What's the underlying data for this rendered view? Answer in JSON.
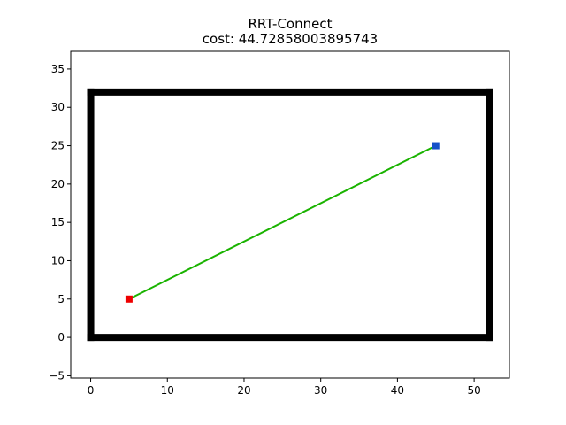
{
  "chart_data": {
    "type": "line",
    "title": "RRT-Connect",
    "subtitle": "cost: 44.72858003895743",
    "xlabel": "",
    "ylabel": "",
    "xlim": [
      -2.6,
      54.6
    ],
    "ylim": [
      -5.3,
      37.3
    ],
    "grid": false,
    "x_ticks": [
      0,
      10,
      20,
      30,
      40,
      50
    ],
    "y_ticks": [
      -5,
      0,
      5,
      10,
      15,
      20,
      25,
      30,
      35
    ],
    "boundary": {
      "x": [
        0,
        52,
        52,
        0,
        0
      ],
      "y": [
        0,
        0,
        32,
        32,
        0
      ],
      "color": "#000000"
    },
    "path": {
      "x": [
        5,
        45
      ],
      "y": [
        5,
        25
      ],
      "color": "#1ab300"
    },
    "start": {
      "x": 5,
      "y": 5,
      "color": "#ee0000"
    },
    "goal": {
      "x": 45,
      "y": 25,
      "color": "#1550c8"
    }
  }
}
